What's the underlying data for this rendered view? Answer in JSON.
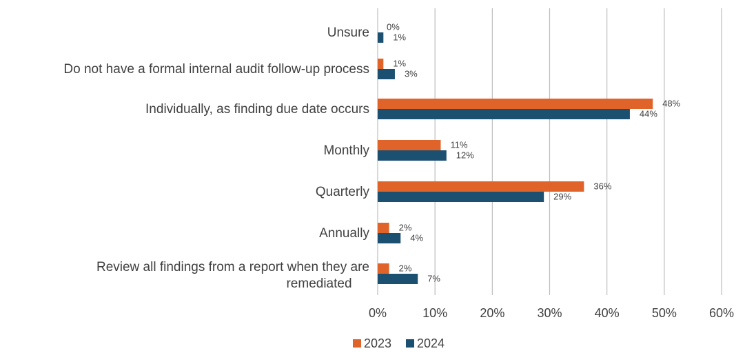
{
  "chart_data": {
    "type": "bar",
    "orientation": "horizontal",
    "categories": [
      "Unsure",
      "Do not have a formal internal audit follow-up process",
      "Individually, as finding due date occurs",
      "Monthly",
      "Quarterly",
      "Annually",
      "Review all findings from a report when they are remediated"
    ],
    "series": [
      {
        "name": "2023",
        "color": "#E0642A",
        "values": [
          0,
          1,
          48,
          11,
          36,
          2,
          2
        ],
        "labels": [
          "0%",
          "1%",
          "48%",
          "11%",
          "36%",
          "2%",
          "2%"
        ]
      },
      {
        "name": "2024",
        "color": "#1B5070",
        "values": [
          1,
          3,
          44,
          12,
          29,
          4,
          7
        ],
        "labels": [
          "1%",
          "3%",
          "44%",
          "12%",
          "29%",
          "4%",
          "7%"
        ]
      }
    ],
    "xlim": [
      0,
      60
    ],
    "x_ticks": [
      0,
      10,
      20,
      30,
      40,
      50,
      60
    ],
    "x_tick_labels": [
      "0%",
      "10%",
      "20%",
      "30%",
      "40%",
      "50%",
      "60%"
    ],
    "grid": "vertical",
    "legend_position": "bottom-center"
  }
}
